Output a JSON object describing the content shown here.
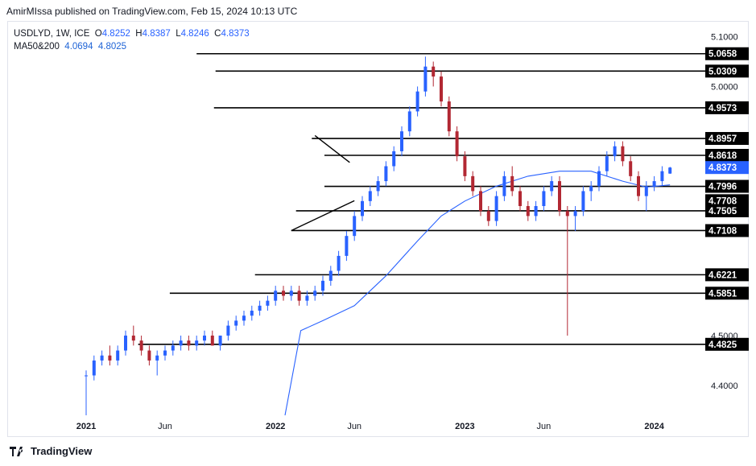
{
  "header": {
    "publisher_line": "AmirMIssa published on TradingView.com, Feb 15, 2024 10:13 UTC"
  },
  "legend": {
    "symbol_line": "USDLYD, 1W, ICE",
    "o_label": "O",
    "o_value": "4.8252",
    "h_label": "H",
    "h_value": "4.8387",
    "l_label": "L",
    "l_value": "4.8246",
    "c_label": "C",
    "c_value": "4.8373",
    "ma_label": "MA50&200",
    "ma50_value": "4.0694",
    "ma200_value": "4.8025"
  },
  "footer": {
    "brand": "TradingView"
  },
  "colors": {
    "up": "#2962ff",
    "down": "#b22833",
    "ma": "#2962ff",
    "level": "#000000",
    "axis_text": "#131722"
  },
  "chart_data": {
    "type": "candlestick",
    "symbol": "USDLYD",
    "timeframe": "1W",
    "ylim": [
      4.34,
      5.13
    ],
    "y_ticks": [
      "5.1000",
      "5.0000",
      "4.5000",
      "4.4000"
    ],
    "x_ticks": [
      "2021",
      "Jun",
      "2022",
      "Jun",
      "2023",
      "Jun",
      "2024"
    ],
    "price_labels": [
      {
        "text": "5.0658",
        "value": 5.0658
      },
      {
        "text": "5.0309",
        "value": 5.0309
      },
      {
        "text": "4.9573",
        "value": 4.9573
      },
      {
        "text": "4.8957",
        "value": 4.8957
      },
      {
        "text": "4.8618",
        "value": 4.8618
      },
      {
        "text": "4.8373",
        "value": 4.8373,
        "current": true
      },
      {
        "text": "4.7996",
        "value": 4.7996
      },
      {
        "text": "4.7708",
        "value": 4.7708
      },
      {
        "text": "4.7505",
        "value": 4.7505
      },
      {
        "text": "4.7108",
        "value": 4.7108
      },
      {
        "text": "4.6221",
        "value": 4.6221
      },
      {
        "text": "4.5851",
        "value": 4.5851
      },
      {
        "text": "4.4825",
        "value": 4.4825
      }
    ],
    "levels": [
      {
        "price": 5.0658,
        "x_start": 7
      },
      {
        "price": 5.0309,
        "x_start": 8.2
      },
      {
        "price": 4.9573,
        "x_start": 8.1
      },
      {
        "price": 4.8957,
        "x_start": 14.3
      },
      {
        "price": 4.8618,
        "x_start": 15.1
      },
      {
        "price": 4.7996,
        "x_start": 15.1
      },
      {
        "price": 4.7505,
        "x_start": 13.3
      },
      {
        "price": 4.7108,
        "x_start": 13
      },
      {
        "price": 4.6221,
        "x_start": 10.7
      },
      {
        "price": 4.5851,
        "x_start": 5.3
      },
      {
        "price": 4.4825,
        "x_start": 3.3
      }
    ],
    "trendlines": [
      {
        "from": [
          13.0,
          4.7108
        ],
        "to": [
          17.0,
          4.7708
        ]
      },
      {
        "from": [
          14.5,
          4.9015
        ],
        "to": [
          16.7,
          4.8475
        ]
      }
    ],
    "x_scale_note": "x values in months since Jan 2021",
    "ohlc": [
      [
        0,
        4.42,
        4.43,
        4.34,
        4.42
      ],
      [
        0.5,
        4.42,
        4.46,
        4.41,
        4.45
      ],
      [
        1,
        4.45,
        4.47,
        4.44,
        4.46
      ],
      [
        1.5,
        4.46,
        4.48,
        4.44,
        4.45
      ],
      [
        2,
        4.45,
        4.48,
        4.44,
        4.47
      ],
      [
        2.5,
        4.47,
        4.51,
        4.46,
        4.5
      ],
      [
        3,
        4.5,
        4.52,
        4.48,
        4.49
      ],
      [
        3.5,
        4.49,
        4.5,
        4.46,
        4.47
      ],
      [
        4,
        4.47,
        4.48,
        4.44,
        4.45
      ],
      [
        4.5,
        4.45,
        4.47,
        4.42,
        4.46
      ],
      [
        5,
        4.46,
        4.48,
        4.45,
        4.47
      ],
      [
        5.5,
        4.47,
        4.49,
        4.46,
        4.48
      ],
      [
        6,
        4.48,
        4.5,
        4.47,
        4.49
      ],
      [
        6.5,
        4.49,
        4.5,
        4.47,
        4.48
      ],
      [
        7,
        4.48,
        4.5,
        4.47,
        4.49
      ],
      [
        7.5,
        4.49,
        4.51,
        4.48,
        4.5
      ],
      [
        8,
        4.5,
        4.51,
        4.48,
        4.48
      ],
      [
        8.5,
        4.48,
        4.5,
        4.47,
        4.5
      ],
      [
        9,
        4.5,
        4.53,
        4.49,
        4.52
      ],
      [
        9.5,
        4.52,
        4.54,
        4.51,
        4.53
      ],
      [
        10,
        4.53,
        4.55,
        4.52,
        4.54
      ],
      [
        10.5,
        4.54,
        4.56,
        4.53,
        4.55
      ],
      [
        11,
        4.55,
        4.57,
        4.54,
        4.56
      ],
      [
        11.5,
        4.56,
        4.58,
        4.55,
        4.57
      ],
      [
        12,
        4.57,
        4.6,
        4.56,
        4.59
      ],
      [
        12.5,
        4.59,
        4.6,
        4.57,
        4.58
      ],
      [
        13,
        4.58,
        4.6,
        4.57,
        4.59
      ],
      [
        13.5,
        4.59,
        4.6,
        4.56,
        4.57
      ],
      [
        14,
        4.57,
        4.59,
        4.56,
        4.58
      ],
      [
        14.5,
        4.58,
        4.6,
        4.57,
        4.59
      ],
      [
        15,
        4.59,
        4.62,
        4.58,
        4.61
      ],
      [
        15.5,
        4.61,
        4.64,
        4.6,
        4.63
      ],
      [
        16,
        4.63,
        4.67,
        4.62,
        4.66
      ],
      [
        16.5,
        4.66,
        4.71,
        4.65,
        4.7
      ],
      [
        17,
        4.7,
        4.75,
        4.69,
        4.74
      ],
      [
        17.5,
        4.74,
        4.78,
        4.73,
        4.77
      ],
      [
        18,
        4.77,
        4.8,
        4.76,
        4.79
      ],
      [
        18.5,
        4.79,
        4.82,
        4.78,
        4.81
      ],
      [
        19,
        4.81,
        4.85,
        4.8,
        4.84
      ],
      [
        19.5,
        4.84,
        4.88,
        4.83,
        4.87
      ],
      [
        20,
        4.87,
        4.92,
        4.86,
        4.91
      ],
      [
        20.5,
        4.91,
        4.96,
        4.9,
        4.95
      ],
      [
        21,
        4.95,
        5.0,
        4.94,
        4.99
      ],
      [
        21.5,
        4.99,
        5.06,
        4.98,
        5.04
      ],
      [
        22,
        5.04,
        5.05,
        5.0,
        5.02
      ],
      [
        22.5,
        5.02,
        5.03,
        4.96,
        4.97
      ],
      [
        23,
        4.97,
        4.98,
        4.9,
        4.91
      ],
      [
        23.5,
        4.91,
        4.92,
        4.85,
        4.86
      ],
      [
        24,
        4.86,
        4.87,
        4.81,
        4.82
      ],
      [
        24.5,
        4.82,
        4.83,
        4.78,
        4.79
      ],
      [
        25,
        4.79,
        4.8,
        4.74,
        4.75
      ],
      [
        25.5,
        4.75,
        4.76,
        4.72,
        4.73
      ],
      [
        26,
        4.73,
        4.79,
        4.72,
        4.78
      ],
      [
        26.5,
        4.78,
        4.83,
        4.77,
        4.82
      ],
      [
        27,
        4.82,
        4.84,
        4.78,
        4.79
      ],
      [
        27.5,
        4.79,
        4.8,
        4.75,
        4.76
      ],
      [
        28,
        4.76,
        4.77,
        4.73,
        4.74
      ],
      [
        28.5,
        4.74,
        4.77,
        4.73,
        4.76
      ],
      [
        29,
        4.76,
        4.8,
        4.75,
        4.79
      ],
      [
        29.5,
        4.79,
        4.82,
        4.78,
        4.81
      ],
      [
        30,
        4.81,
        4.82,
        4.74,
        4.75
      ],
      [
        30.5,
        4.75,
        4.76,
        4.5,
        4.74
      ],
      [
        31,
        4.74,
        4.76,
        4.71,
        4.75
      ],
      [
        31.5,
        4.75,
        4.8,
        4.74,
        4.79
      ],
      [
        32,
        4.79,
        4.81,
        4.77,
        4.8
      ],
      [
        32.5,
        4.8,
        4.84,
        4.79,
        4.83
      ],
      [
        33,
        4.83,
        4.87,
        4.82,
        4.86
      ],
      [
        33.5,
        4.86,
        4.89,
        4.85,
        4.88
      ],
      [
        34,
        4.88,
        4.89,
        4.84,
        4.85
      ],
      [
        34.5,
        4.85,
        4.86,
        4.81,
        4.82
      ],
      [
        35,
        4.82,
        4.83,
        4.77,
        4.78
      ],
      [
        35.5,
        4.78,
        4.81,
        4.75,
        4.8
      ],
      [
        36,
        4.8,
        4.82,
        4.79,
        4.81
      ],
      [
        36.5,
        4.81,
        4.84,
        4.8,
        4.83
      ],
      [
        37,
        4.8252,
        4.8387,
        4.8246,
        4.8373
      ]
    ],
    "ma_series": [
      [
        12.6,
        4.34
      ],
      [
        13.6,
        4.51
      ],
      [
        15,
        4.53
      ],
      [
        17,
        4.56
      ],
      [
        19,
        4.62
      ],
      [
        21,
        4.69
      ],
      [
        22.5,
        4.74
      ],
      [
        24,
        4.77
      ],
      [
        26,
        4.8
      ],
      [
        28,
        4.82
      ],
      [
        30,
        4.83
      ],
      [
        32,
        4.83
      ],
      [
        34,
        4.81
      ],
      [
        35.5,
        4.798
      ],
      [
        37,
        4.8025
      ]
    ]
  }
}
